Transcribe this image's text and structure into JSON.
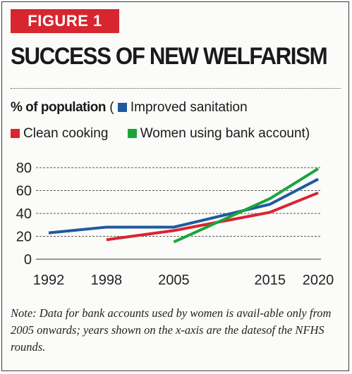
{
  "figure_label": "FIGURE 1",
  "title": "SUCCESS OF NEW WELFARISM",
  "legend": {
    "unit_label": "% of population",
    "open_paren": "(",
    "close_paren": ")",
    "items": [
      {
        "label": "Improved sanitation",
        "color": "#1f5aa0"
      },
      {
        "label": "Clean cooking",
        "color": "#d7262f"
      },
      {
        "label": "Women using bank account",
        "color": "#1aa53a"
      }
    ]
  },
  "chart_data": {
    "type": "line",
    "ylim": [
      0,
      80
    ],
    "yticks": [
      "0",
      "20",
      "40",
      "60",
      "80"
    ],
    "xticks": [
      "1992",
      "1998",
      "2005",
      "2015",
      "2020"
    ],
    "grid": "dashed horizontal",
    "series": [
      {
        "name": "Improved sanitation",
        "color": "#1f5aa0",
        "x": [
          1992,
          1998,
          2005,
          2015,
          2020
        ],
        "y": [
          23,
          28,
          28,
          48,
          70
        ]
      },
      {
        "name": "Clean cooking",
        "color": "#d7262f",
        "x": [
          1998,
          2005,
          2015,
          2020
        ],
        "y": [
          17,
          25,
          41,
          58
        ]
      },
      {
        "name": "Women using bank account",
        "color": "#1aa53a",
        "x": [
          2005,
          2015,
          2020
        ],
        "y": [
          15,
          53,
          79
        ]
      }
    ]
  },
  "note": "Note: Data for bank accounts used by women is avail-able only from 2005 onwards; years shown on the x-axis are the datesof the NFHS rounds."
}
